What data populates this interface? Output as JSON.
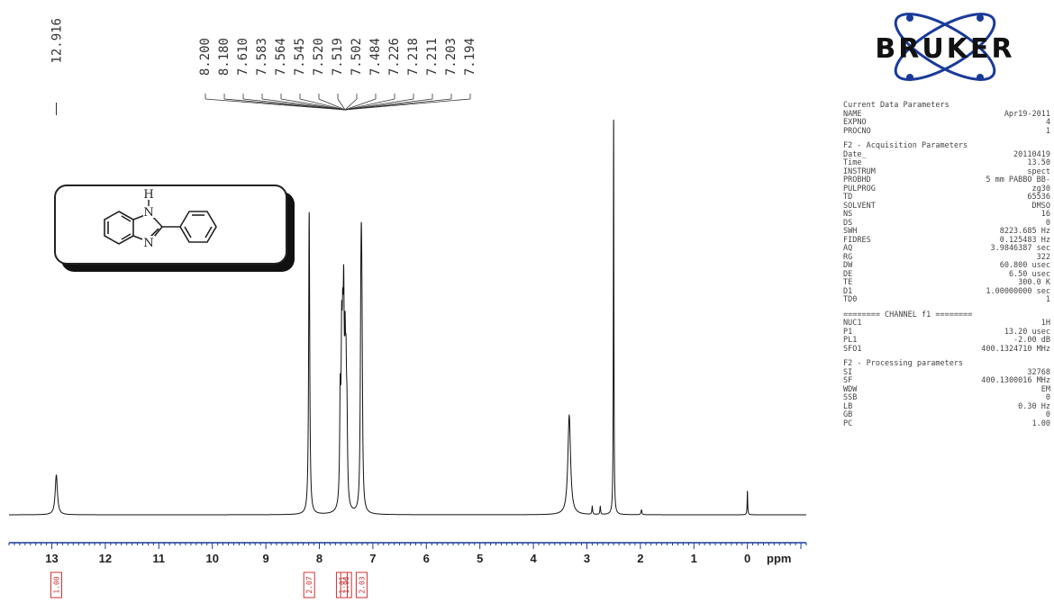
{
  "chart_data": {
    "type": "line",
    "title": "",
    "xlabel": "ppm",
    "ylabel": "",
    "xlim": [
      13.8,
      -1.1
    ],
    "x_reversed": true,
    "x_ticks": [
      13,
      12,
      11,
      10,
      9,
      8,
      7,
      6,
      5,
      4,
      3,
      2,
      1,
      0
    ],
    "x_tick_labels": [
      "13",
      "12",
      "11",
      "10",
      "9",
      "8",
      "7",
      "6",
      "5",
      "4",
      "3",
      "2",
      "1",
      "0"
    ],
    "grid": false,
    "series": [
      {
        "peaks": [
          {
            "ppm": 12.916,
            "height": 0.1,
            "width": 0.025
          },
          {
            "ppm": 8.19,
            "height": 0.76,
            "width": 0.012
          },
          {
            "ppm": 7.61,
            "height": 0.25,
            "width": 0.012
          },
          {
            "ppm": 7.583,
            "height": 0.35,
            "width": 0.012
          },
          {
            "ppm": 7.564,
            "height": 0.3,
            "width": 0.012
          },
          {
            "ppm": 7.545,
            "height": 0.42,
            "width": 0.012
          },
          {
            "ppm": 7.52,
            "height": 0.3,
            "width": 0.012
          },
          {
            "ppm": 7.502,
            "height": 0.25,
            "width": 0.012
          },
          {
            "ppm": 7.484,
            "height": 0.18,
            "width": 0.012
          },
          {
            "ppm": 7.226,
            "height": 0.3,
            "width": 0.012
          },
          {
            "ppm": 7.215,
            "height": 0.42,
            "width": 0.012
          },
          {
            "ppm": 7.203,
            "height": 0.3,
            "width": 0.012
          },
          {
            "ppm": 3.33,
            "height": 0.25,
            "width": 0.03
          },
          {
            "ppm": 2.9,
            "height": 0.02,
            "width": 0.008
          },
          {
            "ppm": 2.75,
            "height": 0.02,
            "width": 0.008
          },
          {
            "ppm": 2.5,
            "height": 1.0,
            "width": 0.006
          },
          {
            "ppm": 1.98,
            "height": 0.012,
            "width": 0.01
          },
          {
            "ppm": 0.0,
            "height": 0.06,
            "width": 0.006
          }
        ]
      }
    ],
    "peak_labels": {
      "left": [
        "12.916"
      ],
      "group": [
        "8.200",
        "8.180",
        "7.610",
        "7.583",
        "7.564",
        "7.545",
        "7.520",
        "7.519",
        "7.502",
        "7.484",
        "7.226",
        "7.218",
        "7.211",
        "7.203",
        "7.194"
      ],
      "group_ppm_center": 7.52
    },
    "integrals": [
      {
        "ppm": 12.916,
        "label": "1.00"
      },
      {
        "ppm": 8.19,
        "label": "2.07"
      },
      {
        "ppm": 7.58,
        "label": "1.01"
      },
      {
        "ppm": 7.5,
        "label": "1.96"
      },
      {
        "ppm": 7.21,
        "label": "2.03"
      }
    ]
  },
  "structure": {
    "atoms": [
      "H",
      "N",
      "N"
    ]
  },
  "logo": {
    "text": "BRUKER"
  },
  "parameters": {
    "current_header": "Current Data Parameters",
    "current": [
      {
        "k": "NAME",
        "v": "Apr19-2011"
      },
      {
        "k": "EXPNO",
        "v": "4"
      },
      {
        "k": "PROCNO",
        "v": "1"
      }
    ],
    "f2_acq_header": "F2 - Acquisition Parameters",
    "f2_acq": [
      {
        "k": "Date_",
        "v": "20110419"
      },
      {
        "k": "Time",
        "v": "13.50"
      },
      {
        "k": "INSTRUM",
        "v": "spect"
      },
      {
        "k": "PROBHD",
        "v": "5 mm PABBO BB-"
      },
      {
        "k": "PULPROG",
        "v": "zg30"
      },
      {
        "k": "TD",
        "v": "65536"
      },
      {
        "k": "SOLVENT",
        "v": "DMSO"
      },
      {
        "k": "NS",
        "v": "16"
      },
      {
        "k": "DS",
        "v": "0"
      },
      {
        "k": "SWH",
        "v": "8223.685 Hz"
      },
      {
        "k": "FIDRES",
        "v": "0.125483 Hz"
      },
      {
        "k": "AQ",
        "v": "3.9846387 sec"
      },
      {
        "k": "RG",
        "v": "322"
      },
      {
        "k": "DW",
        "v": "60.800 usec"
      },
      {
        "k": "DE",
        "v": "6.50 usec"
      },
      {
        "k": "TE",
        "v": "300.0 K"
      },
      {
        "k": "D1",
        "v": "1.00000000 sec"
      },
      {
        "k": "TD0",
        "v": "1"
      }
    ],
    "channel_header": "======== CHANNEL f1 ========",
    "channel": [
      {
        "k": "NUC1",
        "v": "1H"
      },
      {
        "k": "P1",
        "v": "13.20 usec"
      },
      {
        "k": "PL1",
        "v": "-2.00 dB"
      },
      {
        "k": "SFO1",
        "v": "400.1324710 MHz"
      }
    ],
    "f2_proc_header": "F2 - Processing parameters",
    "f2_proc": [
      {
        "k": "SI",
        "v": "32768"
      },
      {
        "k": "SF",
        "v": "400.1300016 MHz"
      },
      {
        "k": "WDW",
        "v": "EM"
      },
      {
        "k": "SSB",
        "v": "0"
      },
      {
        "k": "LB",
        "v": "0.30 Hz"
      },
      {
        "k": "GB",
        "v": "0"
      },
      {
        "k": "PC",
        "v": "1.00"
      }
    ]
  }
}
